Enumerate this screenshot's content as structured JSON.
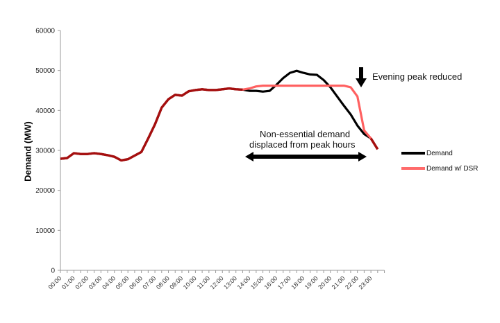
{
  "chart_data": {
    "type": "line",
    "title": "",
    "xlabel": "",
    "ylabel": "Demand (MW)",
    "ylim": [
      0,
      60000
    ],
    "yticks": [
      0,
      10000,
      20000,
      30000,
      40000,
      50000,
      60000
    ],
    "xtick_labels": [
      "00:00",
      "01:00",
      "02:00",
      "03:00",
      "04:00",
      "05:00",
      "06:00",
      "07:00",
      "08:00",
      "09:00",
      "10:00",
      "11:00",
      "12:00",
      "13:00",
      "14:00",
      "15:00",
      "16:00",
      "17:00",
      "18:00",
      "19:00",
      "20:00",
      "21:00",
      "22:00",
      "23:00"
    ],
    "grid": false,
    "legend_position": "right",
    "x": [
      "00:00",
      "00:30",
      "01:00",
      "01:30",
      "02:00",
      "02:30",
      "03:00",
      "03:30",
      "04:00",
      "04:30",
      "05:00",
      "05:30",
      "06:00",
      "06:30",
      "07:00",
      "07:30",
      "08:00",
      "08:30",
      "09:00",
      "09:30",
      "10:00",
      "10:30",
      "11:00",
      "11:30",
      "12:00",
      "12:30",
      "13:00",
      "13:30",
      "14:00",
      "14:30",
      "15:00",
      "15:30",
      "16:00",
      "16:30",
      "17:00",
      "17:30",
      "18:00",
      "18:30",
      "19:00",
      "19:30",
      "20:00",
      "20:30",
      "21:00",
      "21:30",
      "22:00",
      "22:30",
      "23:00",
      "23:30"
    ],
    "series": [
      {
        "name": "Demand",
        "color": "#000000",
        "values": [
          27900,
          28100,
          29300,
          29100,
          29100,
          29300,
          29100,
          28800,
          28400,
          27500,
          27800,
          28700,
          29600,
          33000,
          36500,
          40700,
          42800,
          43900,
          43700,
          44800,
          45100,
          45300,
          45100,
          45100,
          45300,
          45500,
          45300,
          45200,
          44900,
          44900,
          44700,
          44900,
          46400,
          48100,
          49400,
          49900,
          49400,
          49000,
          48900,
          47600,
          45800,
          43500,
          41200,
          39000,
          36200,
          34100,
          33000,
          30300
        ]
      },
      {
        "name": "Demand w/ DSR",
        "color": "#ff5a5a",
        "values": [
          27900,
          28100,
          29300,
          29100,
          29100,
          29300,
          29100,
          28800,
          28400,
          27500,
          27800,
          28700,
          29600,
          33000,
          36500,
          40700,
          42800,
          43900,
          43700,
          44800,
          45100,
          45300,
          45100,
          45100,
          45300,
          45500,
          45300,
          45200,
          45500,
          46000,
          46200,
          46200,
          46200,
          46200,
          46200,
          46200,
          46200,
          46200,
          46200,
          46200,
          46200,
          46200,
          46200,
          45800,
          43500,
          35000,
          33000,
          30300
        ]
      }
    ],
    "overlap_color": "#a50f0f",
    "annotations": [
      {
        "text": "Evening peak reduced",
        "type": "down-arrow",
        "at": "21:45"
      },
      {
        "text": "Non-essential demand displaced from peak hours",
        "type": "double-arrow",
        "from": "13:00",
        "to": "21:30"
      }
    ]
  },
  "labels": {
    "ylabel": "Demand (MW)",
    "legend_demand": "Demand",
    "legend_dsr": "Demand w/ DSR",
    "ann_peak": "Evening peak reduced",
    "ann_shift_line1": "Non-essential demand",
    "ann_shift_line2": "displaced from peak hours"
  }
}
